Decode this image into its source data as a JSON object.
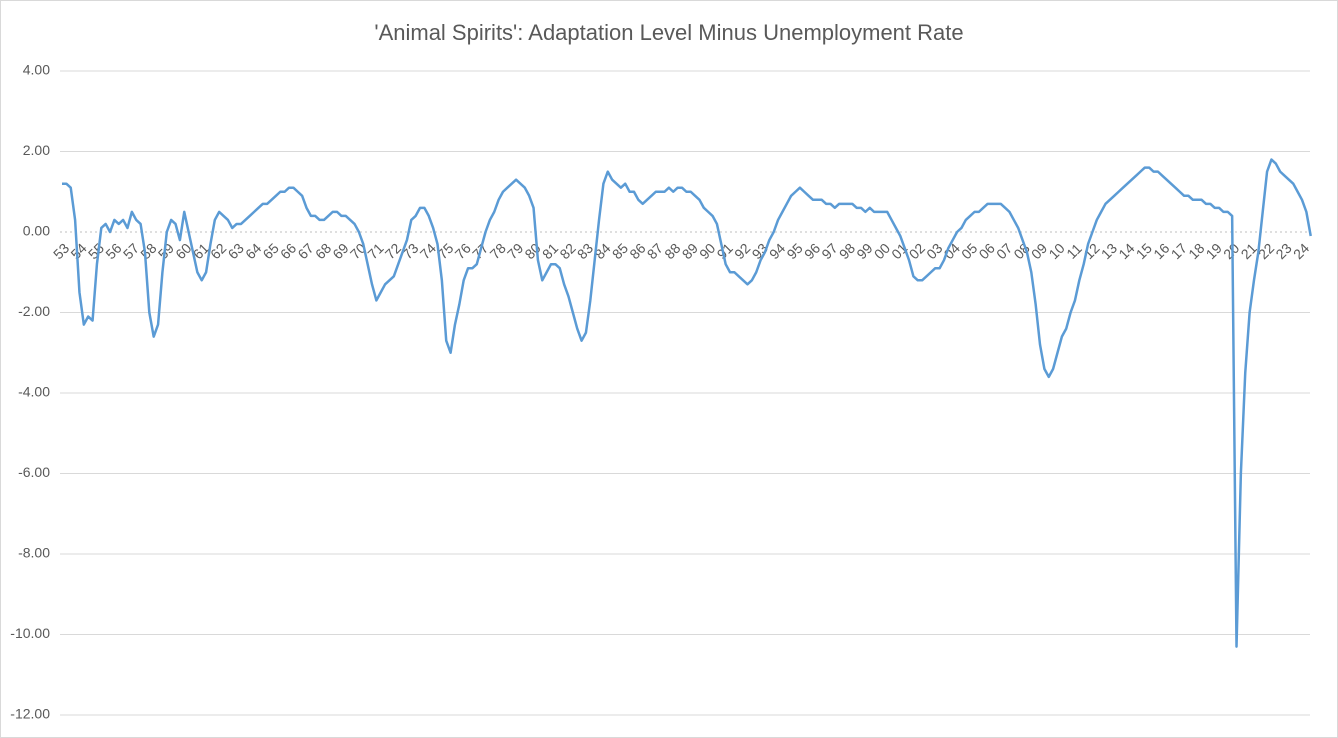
{
  "chart_data": {
    "type": "line",
    "title": "'Animal Spirits': Adaptation Level Minus Unemployment Rate",
    "categories": [
      "53",
      null,
      null,
      null,
      "54",
      null,
      null,
      null,
      "55",
      null,
      null,
      null,
      "56",
      null,
      null,
      null,
      "57",
      null,
      null,
      null,
      "58",
      null,
      null,
      null,
      "59",
      null,
      null,
      null,
      "60",
      null,
      null,
      null,
      "61",
      null,
      null,
      null,
      "62",
      null,
      null,
      null,
      "63",
      null,
      null,
      null,
      "64",
      null,
      null,
      null,
      "65",
      null,
      null,
      null,
      "66",
      null,
      null,
      null,
      "67",
      null,
      null,
      null,
      "68",
      null,
      null,
      null,
      "69",
      null,
      null,
      null,
      "70",
      null,
      null,
      null,
      "71",
      null,
      null,
      null,
      "72",
      null,
      null,
      null,
      "73",
      null,
      null,
      null,
      "74",
      null,
      null,
      null,
      "75",
      null,
      null,
      null,
      "76",
      null,
      null,
      null,
      "77",
      null,
      null,
      null,
      "78",
      null,
      null,
      null,
      "79",
      null,
      null,
      null,
      "80",
      null,
      null,
      null,
      "81",
      null,
      null,
      null,
      "82",
      null,
      null,
      null,
      "83",
      null,
      null,
      null,
      "84",
      null,
      null,
      null,
      "85",
      null,
      null,
      null,
      "86",
      null,
      null,
      null,
      "87",
      null,
      null,
      null,
      "88",
      null,
      null,
      null,
      "89",
      null,
      null,
      null,
      "90",
      null,
      null,
      null,
      "91",
      null,
      null,
      null,
      "92",
      null,
      null,
      null,
      "93",
      null,
      null,
      null,
      "94",
      null,
      null,
      null,
      "95",
      null,
      null,
      null,
      "96",
      null,
      null,
      null,
      "97",
      null,
      null,
      null,
      "98",
      null,
      null,
      null,
      "99",
      null,
      null,
      null,
      "00",
      null,
      null,
      null,
      "01",
      null,
      null,
      null,
      "02",
      null,
      null,
      null,
      "03",
      null,
      null,
      null,
      "04",
      null,
      null,
      null,
      "05",
      null,
      null,
      null,
      "06",
      null,
      null,
      null,
      "07",
      null,
      null,
      null,
      "08",
      null,
      null,
      null,
      "09",
      null,
      null,
      null,
      "10",
      null,
      null,
      null,
      "11",
      null,
      null,
      null,
      "12",
      null,
      null,
      null,
      "13",
      null,
      null,
      null,
      "14",
      null,
      null,
      null,
      "15",
      null,
      null,
      null,
      "16",
      null,
      null,
      null,
      "17",
      null,
      null,
      null,
      "18",
      null,
      null,
      null,
      "19",
      null,
      null,
      null,
      "20",
      null,
      null,
      null,
      "21",
      null,
      null,
      null,
      "22",
      null,
      null,
      null,
      "23",
      null,
      null,
      null,
      "24",
      null,
      null
    ],
    "values": [
      1.2,
      1.2,
      1.1,
      0.3,
      -1.5,
      -2.3,
      -2.1,
      -2.2,
      -0.8,
      0.1,
      0.2,
      0.0,
      0.3,
      0.2,
      0.3,
      0.1,
      0.5,
      0.3,
      0.2,
      -0.5,
      -2.0,
      -2.6,
      -2.3,
      -1.0,
      0.0,
      0.3,
      0.2,
      -0.2,
      0.5,
      0.0,
      -0.5,
      -1.0,
      -1.2,
      -1.0,
      -0.3,
      0.3,
      0.5,
      0.4,
      0.3,
      0.1,
      0.2,
      0.2,
      0.3,
      0.4,
      0.5,
      0.6,
      0.7,
      0.7,
      0.8,
      0.9,
      1.0,
      1.0,
      1.1,
      1.1,
      1.0,
      0.9,
      0.6,
      0.4,
      0.4,
      0.3,
      0.3,
      0.4,
      0.5,
      0.5,
      0.4,
      0.4,
      0.3,
      0.2,
      0.0,
      -0.3,
      -0.8,
      -1.3,
      -1.7,
      -1.5,
      -1.3,
      -1.2,
      -1.1,
      -0.8,
      -0.5,
      -0.2,
      0.3,
      0.4,
      0.6,
      0.6,
      0.4,
      0.1,
      -0.3,
      -1.2,
      -2.7,
      -3.0,
      -2.3,
      -1.8,
      -1.2,
      -0.9,
      -0.9,
      -0.8,
      -0.4,
      0.0,
      0.3,
      0.5,
      0.8,
      1.0,
      1.1,
      1.2,
      1.3,
      1.2,
      1.1,
      0.9,
      0.6,
      -0.7,
      -1.2,
      -1.0,
      -0.8,
      -0.8,
      -0.9,
      -1.3,
      -1.6,
      -2.0,
      -2.4,
      -2.7,
      -2.5,
      -1.7,
      -0.7,
      0.3,
      1.2,
      1.5,
      1.3,
      1.2,
      1.1,
      1.2,
      1.0,
      1.0,
      0.8,
      0.7,
      0.8,
      0.9,
      1.0,
      1.0,
      1.0,
      1.1,
      1.0,
      1.1,
      1.1,
      1.0,
      1.0,
      0.9,
      0.8,
      0.6,
      0.5,
      0.4,
      0.2,
      -0.3,
      -0.8,
      -1.0,
      -1.0,
      -1.1,
      -1.2,
      -1.3,
      -1.2,
      -1.0,
      -0.7,
      -0.5,
      -0.2,
      0.0,
      0.3,
      0.5,
      0.7,
      0.9,
      1.0,
      1.1,
      1.0,
      0.9,
      0.8,
      0.8,
      0.8,
      0.7,
      0.7,
      0.6,
      0.7,
      0.7,
      0.7,
      0.7,
      0.6,
      0.6,
      0.5,
      0.6,
      0.5,
      0.5,
      0.5,
      0.5,
      0.3,
      0.1,
      -0.1,
      -0.4,
      -0.7,
      -1.1,
      -1.2,
      -1.2,
      -1.1,
      -1.0,
      -0.9,
      -0.9,
      -0.7,
      -0.4,
      -0.2,
      0.0,
      0.1,
      0.3,
      0.4,
      0.5,
      0.5,
      0.6,
      0.7,
      0.7,
      0.7,
      0.7,
      0.6,
      0.5,
      0.3,
      0.1,
      -0.2,
      -0.5,
      -1.0,
      -1.8,
      -2.8,
      -3.4,
      -3.6,
      -3.4,
      -3.0,
      -2.6,
      -2.4,
      -2.0,
      -1.7,
      -1.2,
      -0.8,
      -0.3,
      0.0,
      0.3,
      0.5,
      0.7,
      0.8,
      0.9,
      1.0,
      1.1,
      1.2,
      1.3,
      1.4,
      1.5,
      1.6,
      1.6,
      1.5,
      1.5,
      1.4,
      1.3,
      1.2,
      1.1,
      1.0,
      0.9,
      0.9,
      0.8,
      0.8,
      0.8,
      0.7,
      0.7,
      0.6,
      0.6,
      0.5,
      0.5,
      0.4,
      -10.3,
      -6.0,
      -3.5,
      -2.0,
      -1.2,
      -0.5,
      0.5,
      1.5,
      1.8,
      1.7,
      1.5,
      1.4,
      1.3,
      1.2,
      1.0,
      0.8,
      0.5,
      -0.1
    ],
    "color": "#5b9bd5",
    "ylim": [
      -12,
      4
    ],
    "yticks": [
      {
        "value": 4,
        "label": "4.00"
      },
      {
        "value": 2,
        "label": "2.00"
      },
      {
        "value": 0,
        "label": "0.00"
      },
      {
        "value": -2,
        "label": "-2.00"
      },
      {
        "value": -4,
        "label": "-4.00"
      },
      {
        "value": -6,
        "label": "-6.00"
      },
      {
        "value": -8,
        "label": "-8.00"
      },
      {
        "value": -10,
        "label": "-10.00"
      },
      {
        "value": -12,
        "label": "-12.00"
      }
    ],
    "grid": true
  }
}
